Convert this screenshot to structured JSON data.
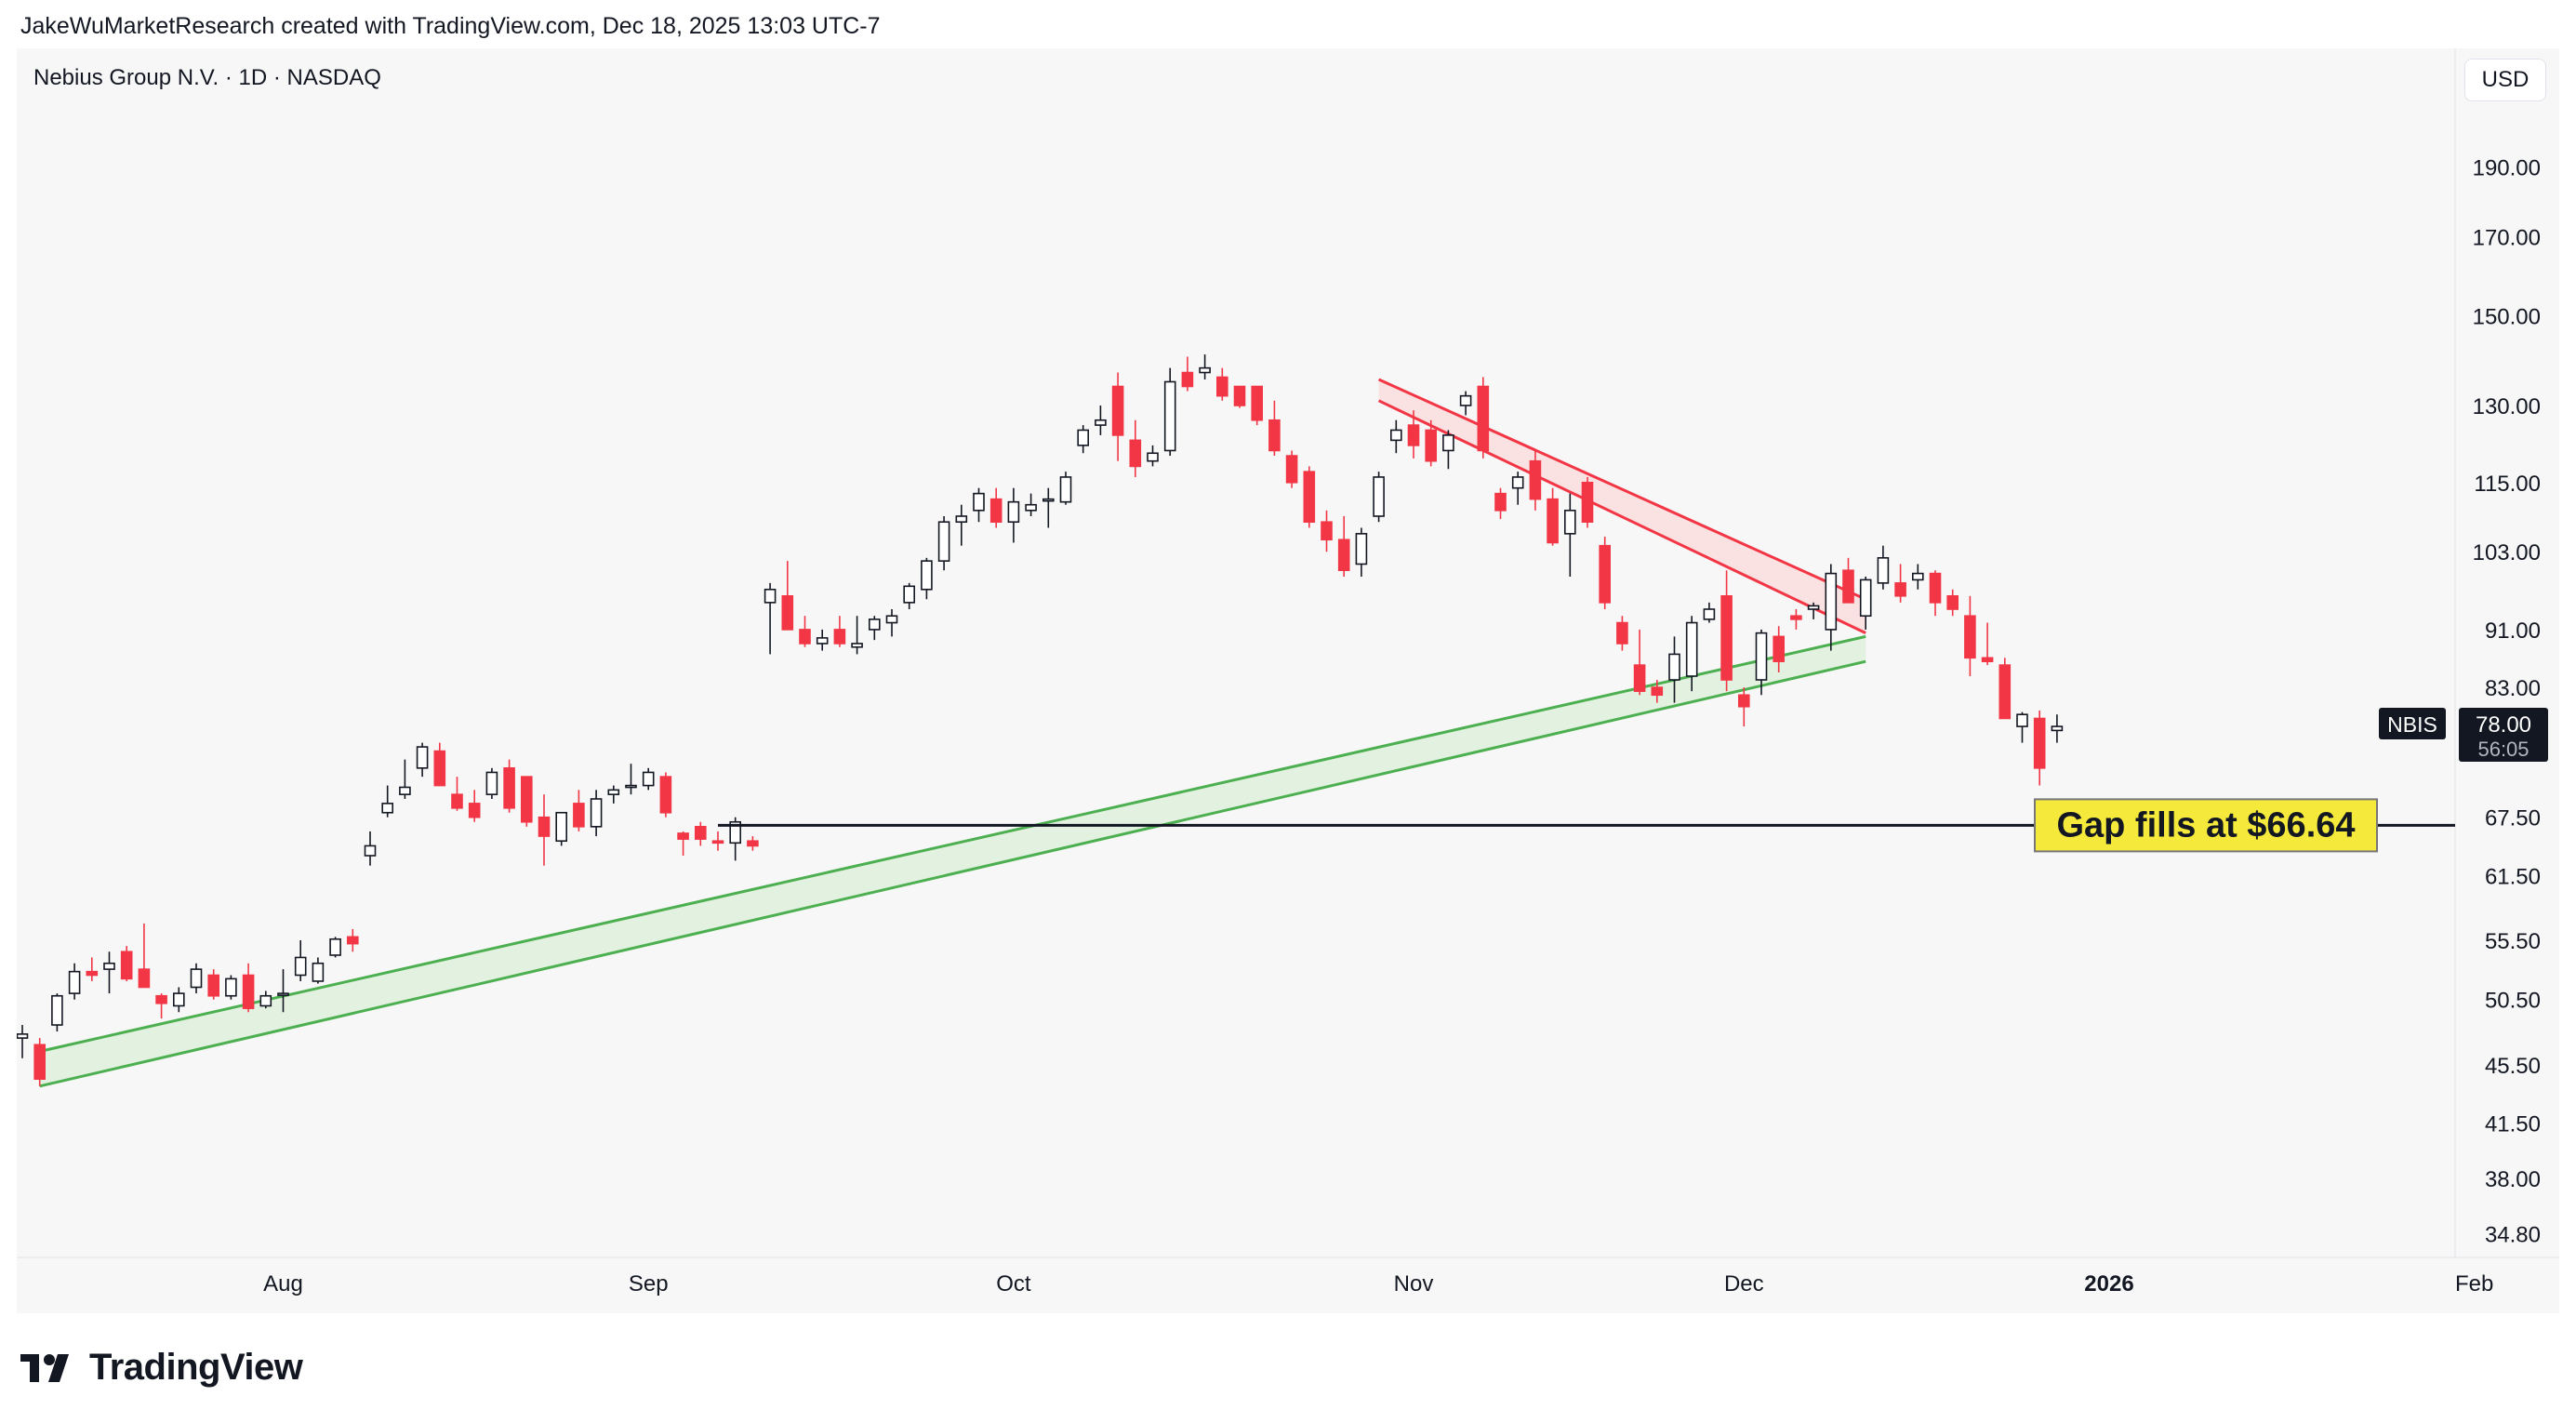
{
  "attribution": "JakeWuMarketResearch created with TradingView.com, Dec 18, 2025 13:03 UTC-7",
  "brand": "TradingView",
  "colors": {
    "up": "#131722",
    "down": "#f23645",
    "support": "#4caf50",
    "support_fill": "#dff0dc",
    "resistance": "#f23645",
    "resistance_fill": "#fcdede",
    "callout_bg": "#f5ea3b",
    "background": "#f7f7f7"
  },
  "chart_data": {
    "type": "candlestick",
    "title": "Nebius Group N.V. · 1D · NASDAQ",
    "symbol": "NBIS",
    "currency": "USD",
    "y_scale": "log",
    "ylim": [
      33.5,
      210
    ],
    "y_ticks": [
      "190.00",
      "170.00",
      "150.00",
      "130.00",
      "115.00",
      "103.00",
      "91.00",
      "83.00",
      "67.50",
      "61.50",
      "55.50",
      "50.50",
      "45.50",
      "41.50",
      "38.00",
      "34.80"
    ],
    "x_ticks": [
      {
        "label": "Aug",
        "index": 15,
        "bold": false
      },
      {
        "label": "Sep",
        "index": 36,
        "bold": false
      },
      {
        "label": "Oct",
        "index": 57,
        "bold": false
      },
      {
        "label": "Nov",
        "index": 80,
        "bold": false
      },
      {
        "label": "Dec",
        "index": 99,
        "bold": false
      },
      {
        "label": "2026",
        "index": 120,
        "bold": true
      },
      {
        "label": "Feb",
        "index": 141,
        "bold": false
      }
    ],
    "candles": [
      [
        47.5,
        48.5,
        46,
        47.8
      ],
      [
        47,
        47.5,
        44,
        44.5
      ],
      [
        48.5,
        51,
        48,
        50.8
      ],
      [
        51,
        53.5,
        50.5,
        52.8
      ],
      [
        52.8,
        54,
        52,
        52.5
      ],
      [
        53,
        54.5,
        51,
        53.5
      ],
      [
        54.5,
        55,
        52,
        52.2
      ],
      [
        53,
        57,
        51.5,
        51.5
      ],
      [
        50.8,
        51,
        49,
        50.2
      ],
      [
        50,
        51.5,
        49.5,
        51
      ],
      [
        51.5,
        53.5,
        51,
        53
      ],
      [
        52.5,
        53,
        50.5,
        50.8
      ],
      [
        50.8,
        52.5,
        50.5,
        52.2
      ],
      [
        52.5,
        53.5,
        49.5,
        49.8
      ],
      [
        50,
        51.2,
        49.8,
        50.8
      ],
      [
        51,
        53,
        49.5,
        51
      ],
      [
        52.5,
        55.5,
        52,
        54
      ],
      [
        52,
        54,
        51.8,
        53.5
      ],
      [
        54.2,
        55.8,
        54,
        55.6
      ],
      [
        55.8,
        56.5,
        54.5,
        55.2
      ],
      [
        63.5,
        66,
        62.5,
        64.5
      ],
      [
        68,
        71,
        67.5,
        69
      ],
      [
        70,
        74,
        69.5,
        70.8
      ],
      [
        73,
        76,
        72,
        75.5
      ],
      [
        75,
        76,
        71,
        71
      ],
      [
        70,
        72,
        68.2,
        68.5
      ],
      [
        69,
        70.5,
        67,
        67.5
      ],
      [
        70,
        73,
        69.5,
        72.5
      ],
      [
        73,
        74,
        68,
        68.5
      ],
      [
        72,
        72,
        66.5,
        67
      ],
      [
        67.5,
        70,
        62.5,
        65.5
      ],
      [
        65,
        68,
        64.5,
        68
      ],
      [
        69,
        70.5,
        66,
        66.5
      ],
      [
        66.5,
        70.5,
        65.5,
        69.5
      ],
      [
        70,
        71,
        69,
        70.5
      ],
      [
        71,
        73.5,
        70,
        71
      ],
      [
        71,
        73,
        70.5,
        72.5
      ],
      [
        72,
        72.5,
        67.5,
        68
      ],
      [
        65.8,
        66,
        63.5,
        65.2
      ],
      [
        66.5,
        67,
        64.5,
        65.2
      ],
      [
        65,
        66,
        64,
        64.8
      ],
      [
        64.8,
        67.5,
        63,
        67
      ],
      [
        65,
        65.5,
        64,
        64.5
      ],
      [
        95,
        98,
        87.5,
        97
      ],
      [
        96,
        101.5,
        91,
        91
      ],
      [
        91,
        93,
        88.5,
        89
      ],
      [
        89,
        91,
        88,
        89.8
      ],
      [
        91,
        93,
        88.5,
        89
      ],
      [
        88.5,
        93,
        87.5,
        89
      ],
      [
        91,
        93,
        89.5,
        92.5
      ],
      [
        92,
        94,
        90,
        93
      ],
      [
        95,
        98,
        94,
        97.5
      ],
      [
        97,
        102,
        95.5,
        101.5
      ],
      [
        101.5,
        109,
        100,
        108
      ],
      [
        108,
        111,
        104,
        109
      ],
      [
        110,
        114,
        108,
        113
      ],
      [
        112,
        114,
        107,
        108
      ],
      [
        108,
        114,
        104.5,
        111.5
      ],
      [
        110,
        113,
        109,
        111
      ],
      [
        112,
        114,
        107,
        112
      ],
      [
        111.5,
        117,
        111,
        116
      ],
      [
        122,
        126,
        120.5,
        125
      ],
      [
        126,
        130,
        124,
        127
      ],
      [
        134,
        137,
        119,
        124
      ],
      [
        123,
        127,
        116,
        118
      ],
      [
        119,
        122,
        118,
        120.5
      ],
      [
        121,
        138,
        120,
        135
      ],
      [
        137,
        140.5,
        133,
        134
      ],
      [
        137,
        141,
        135.5,
        138
      ],
      [
        136,
        138,
        131,
        132
      ],
      [
        134,
        134,
        129.5,
        130
      ],
      [
        134,
        134,
        126,
        127
      ],
      [
        127,
        131,
        120,
        121
      ],
      [
        120,
        121,
        114,
        115
      ],
      [
        117,
        118,
        107,
        108
      ],
      [
        108,
        110,
        103,
        105
      ],
      [
        105,
        109,
        99,
        100
      ],
      [
        101,
        107,
        99,
        106
      ],
      [
        109,
        117,
        108,
        116
      ],
      [
        123,
        127,
        120.5,
        125
      ],
      [
        126,
        129,
        119.5,
        122
      ],
      [
        125,
        127,
        118,
        119
      ],
      [
        121,
        125,
        117.5,
        124
      ],
      [
        130,
        133,
        128,
        132
      ],
      [
        134,
        136,
        119.5,
        121
      ],
      [
        113,
        114,
        108.5,
        110
      ],
      [
        114,
        117,
        111,
        116
      ],
      [
        119,
        121,
        110,
        112
      ],
      [
        112,
        114,
        104,
        104.5
      ],
      [
        106,
        113,
        99,
        110
      ],
      [
        115,
        116,
        107,
        108
      ],
      [
        104,
        105.5,
        94,
        95
      ],
      [
        92,
        93,
        88,
        89
      ],
      [
        86,
        91,
        82,
        82.5
      ],
      [
        83,
        84,
        81,
        82
      ],
      [
        84,
        90,
        81,
        87.5
      ],
      [
        84.5,
        93,
        82.5,
        92
      ],
      [
        92.5,
        95,
        92,
        94
      ],
      [
        96,
        100,
        82.5,
        84
      ],
      [
        82,
        83,
        78,
        80.5
      ],
      [
        84,
        91,
        82,
        90.5
      ],
      [
        90,
        91.5,
        85,
        86.5
      ],
      [
        93,
        94,
        91,
        92.5
      ],
      [
        94,
        95,
        92.5,
        94.5
      ],
      [
        91,
        101,
        88,
        99.5
      ],
      [
        100,
        102,
        95,
        95
      ],
      [
        93,
        99,
        91,
        98.5
      ],
      [
        98,
        104,
        97,
        102
      ],
      [
        98,
        101,
        95,
        96
      ],
      [
        98.5,
        101,
        97,
        99.5
      ],
      [
        99.5,
        100,
        93,
        95
      ],
      [
        96,
        97,
        93,
        94
      ],
      [
        93,
        96,
        84.5,
        87
      ],
      [
        87,
        92,
        86,
        86.5
      ],
      [
        86,
        87,
        79,
        79
      ],
      [
        78,
        79.8,
        76,
        79.5
      ],
      [
        79,
        80,
        71,
        73
      ],
      [
        77.5,
        79.5,
        76,
        78
      ]
    ],
    "support_channel": {
      "start_index": 1,
      "end_index": 106,
      "upper": [
        46.5,
        90.0
      ],
      "lower": [
        44.0,
        86.5
      ]
    },
    "resistance_channel": {
      "start_index": 78,
      "end_index": 106,
      "upper": [
        135.5,
        95.5
      ],
      "lower": [
        131.0,
        90.5
      ]
    },
    "gap_line": {
      "value": 66.64,
      "start_index": 40
    },
    "annotation": "Gap fills at $66.64",
    "last_price": "78.00",
    "countdown": "56:05"
  }
}
